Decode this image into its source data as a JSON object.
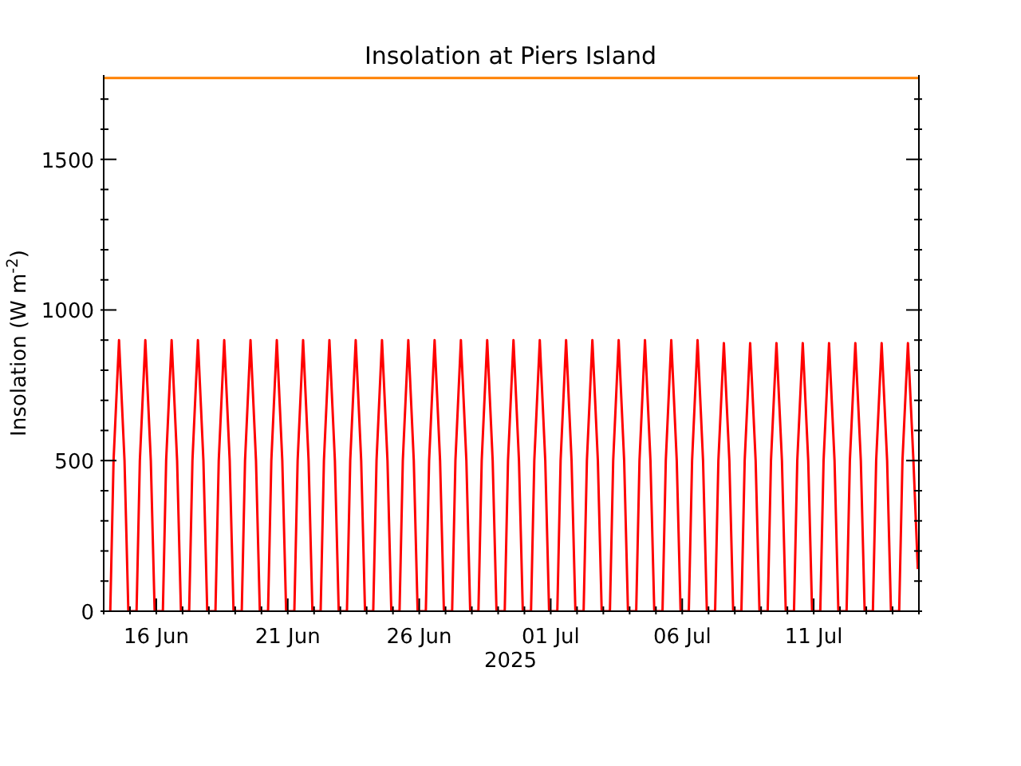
{
  "chart_data": {
    "type": "line",
    "title": "Insolation at Piers Island",
    "xlabel": "2025",
    "ylabel": "Insolation (W m$^{-2}$)",
    "xlim": [
      "2025-06-14",
      "2025-07-15"
    ],
    "ylim": [
      0,
      1780
    ],
    "xticks": [
      {
        "value": "2025-06-14",
        "label": null
      },
      {
        "value": "2025-06-15",
        "label": null
      },
      {
        "value": "2025-06-16",
        "label": "16 Jun"
      },
      {
        "value": "2025-06-17",
        "label": null
      },
      {
        "value": "2025-06-18",
        "label": null
      },
      {
        "value": "2025-06-19",
        "label": null
      },
      {
        "value": "2025-06-20",
        "label": null
      },
      {
        "value": "2025-06-21",
        "label": "21 Jun"
      },
      {
        "value": "2025-06-22",
        "label": null
      },
      {
        "value": "2025-06-23",
        "label": null
      },
      {
        "value": "2025-06-24",
        "label": null
      },
      {
        "value": "2025-06-25",
        "label": null
      },
      {
        "value": "2025-06-26",
        "label": "26 Jun"
      },
      {
        "value": "2025-06-27",
        "label": null
      },
      {
        "value": "2025-06-28",
        "label": null
      },
      {
        "value": "2025-06-29",
        "label": null
      },
      {
        "value": "2025-06-30",
        "label": null
      },
      {
        "value": "2025-07-01",
        "label": "01 Jul"
      },
      {
        "value": "2025-07-02",
        "label": null
      },
      {
        "value": "2025-07-03",
        "label": null
      },
      {
        "value": "2025-07-04",
        "label": null
      },
      {
        "value": "2025-07-05",
        "label": null
      },
      {
        "value": "2025-07-06",
        "label": "06 Jul"
      },
      {
        "value": "2025-07-07",
        "label": null
      },
      {
        "value": "2025-07-08",
        "label": null
      },
      {
        "value": "2025-07-09",
        "label": null
      },
      {
        "value": "2025-07-10",
        "label": null
      },
      {
        "value": "2025-07-11",
        "label": "11 Jul"
      },
      {
        "value": "2025-07-12",
        "label": null
      },
      {
        "value": "2025-07-13",
        "label": null
      },
      {
        "value": "2025-07-14",
        "label": null
      },
      {
        "value": "2025-07-15",
        "label": null
      }
    ],
    "yticks": [
      0,
      {
        "value": 100,
        "label": null
      },
      {
        "value": 200,
        "label": null
      },
      {
        "value": 300,
        "label": null
      },
      {
        "value": 400,
        "label": null
      },
      500,
      {
        "value": 600,
        "label": null
      },
      {
        "value": 700,
        "label": null
      },
      {
        "value": 800,
        "label": null
      },
      {
        "value": 900,
        "label": null
      },
      1000,
      {
        "value": 1100,
        "label": null
      },
      {
        "value": 1200,
        "label": null
      },
      {
        "value": 1300,
        "label": null
      },
      {
        "value": 1400,
        "label": null
      },
      1500,
      {
        "value": 1600,
        "label": null
      },
      {
        "value": 1700,
        "label": null
      }
    ],
    "marker": "none",
    "line_style": "solid",
    "series": [
      {
        "color": "#ff0000",
        "x": [
          "2025-06-14T06:00",
          "2025-06-14T09:00",
          "2025-06-14T14:00",
          "2025-06-14T19:00",
          "2025-06-14T22:30",
          "2025-06-15T06:00",
          "2025-06-15T09:00",
          "2025-06-15T14:00",
          "2025-06-15T19:00",
          "2025-06-15T22:30",
          "2025-06-16T06:00",
          "2025-06-16T09:00",
          "2025-06-16T14:00",
          "2025-06-16T19:00",
          "2025-06-16T22:30",
          "2025-06-17T06:00",
          "2025-06-17T09:00",
          "2025-06-17T14:00",
          "2025-06-17T19:00",
          "2025-06-17T22:30",
          "2025-06-18T06:00",
          "2025-06-18T09:00",
          "2025-06-18T14:00",
          "2025-06-18T19:00",
          "2025-06-18T22:30",
          "2025-06-19T06:00",
          "2025-06-19T09:00",
          "2025-06-19T14:00",
          "2025-06-19T19:00",
          "2025-06-19T22:30",
          "2025-06-20T06:00",
          "2025-06-20T09:00",
          "2025-06-20T14:00",
          "2025-06-20T19:00",
          "2025-06-20T22:30",
          "2025-06-21T06:00",
          "2025-06-21T09:00",
          "2025-06-21T14:00",
          "2025-06-21T19:00",
          "2025-06-21T22:30",
          "2025-06-22T06:00",
          "2025-06-22T09:00",
          "2025-06-22T14:00",
          "2025-06-22T19:00",
          "2025-06-22T22:30",
          "2025-06-23T06:00",
          "2025-06-23T09:00",
          "2025-06-23T14:00",
          "2025-06-23T19:00",
          "2025-06-23T22:30",
          "2025-06-24T06:00",
          "2025-06-24T09:00",
          "2025-06-24T14:00",
          "2025-06-24T19:00",
          "2025-06-24T22:30",
          "2025-06-25T06:00",
          "2025-06-25T09:00",
          "2025-06-25T14:00",
          "2025-06-25T19:00",
          "2025-06-25T22:30",
          "2025-06-26T06:00",
          "2025-06-26T09:00",
          "2025-06-26T14:00",
          "2025-06-26T19:00",
          "2025-06-26T22:30",
          "2025-06-27T06:00",
          "2025-06-27T09:00",
          "2025-06-27T14:00",
          "2025-06-27T19:00",
          "2025-06-27T22:30",
          "2025-06-28T06:00",
          "2025-06-28T09:00",
          "2025-06-28T14:00",
          "2025-06-28T19:00",
          "2025-06-28T22:30",
          "2025-06-29T06:00",
          "2025-06-29T09:00",
          "2025-06-29T14:00",
          "2025-06-29T19:00",
          "2025-06-29T22:30",
          "2025-06-30T06:00",
          "2025-06-30T09:00",
          "2025-06-30T14:00",
          "2025-06-30T19:00",
          "2025-06-30T22:30",
          "2025-07-01T06:00",
          "2025-07-01T09:00",
          "2025-07-01T14:00",
          "2025-07-01T19:00",
          "2025-07-01T22:30",
          "2025-07-02T06:00",
          "2025-07-02T09:00",
          "2025-07-02T14:00",
          "2025-07-02T19:00",
          "2025-07-02T22:30",
          "2025-07-03T06:00",
          "2025-07-03T09:00",
          "2025-07-03T14:00",
          "2025-07-03T19:00",
          "2025-07-03T22:30",
          "2025-07-04T06:00",
          "2025-07-04T09:00",
          "2025-07-04T14:00",
          "2025-07-04T19:00",
          "2025-07-04T22:30",
          "2025-07-05T06:00",
          "2025-07-05T09:00",
          "2025-07-05T14:00",
          "2025-07-05T19:00",
          "2025-07-05T22:30",
          "2025-07-06T06:00",
          "2025-07-06T09:00",
          "2025-07-06T14:00",
          "2025-07-06T19:00",
          "2025-07-06T22:30",
          "2025-07-07T06:00",
          "2025-07-07T09:00",
          "2025-07-07T14:00",
          "2025-07-07T19:00",
          "2025-07-07T22:30",
          "2025-07-08T06:00",
          "2025-07-08T09:00",
          "2025-07-08T14:00",
          "2025-07-08T19:00",
          "2025-07-08T22:30",
          "2025-07-09T06:00",
          "2025-07-09T09:00",
          "2025-07-09T14:00",
          "2025-07-09T19:00",
          "2025-07-09T22:30",
          "2025-07-10T06:00",
          "2025-07-10T09:00",
          "2025-07-10T14:00",
          "2025-07-10T19:00",
          "2025-07-10T22:30",
          "2025-07-11T06:00",
          "2025-07-11T09:00",
          "2025-07-11T14:00",
          "2025-07-11T19:00",
          "2025-07-11T22:30",
          "2025-07-12T06:00",
          "2025-07-12T09:00",
          "2025-07-12T14:00",
          "2025-07-12T19:00",
          "2025-07-12T22:30",
          "2025-07-13T06:00",
          "2025-07-13T09:00",
          "2025-07-13T14:00",
          "2025-07-13T19:00",
          "2025-07-13T22:30",
          "2025-07-14T06:00",
          "2025-07-14T09:00",
          "2025-07-14T14:00",
          "2025-07-14T19:00",
          "2025-07-14T23:00"
        ],
        "values": [
          0,
          500,
          900,
          500,
          0,
          0,
          500,
          900,
          500,
          0,
          0,
          500,
          900,
          500,
          0,
          0,
          500,
          900,
          500,
          0,
          0,
          500,
          900,
          500,
          0,
          0,
          500,
          900,
          500,
          0,
          0,
          500,
          900,
          500,
          0,
          0,
          500,
          900,
          500,
          0,
          0,
          500,
          900,
          500,
          0,
          0,
          500,
          900,
          500,
          0,
          0,
          500,
          900,
          500,
          0,
          0,
          500,
          900,
          500,
          0,
          0,
          500,
          900,
          500,
          0,
          0,
          500,
          900,
          500,
          0,
          0,
          500,
          900,
          500,
          0,
          0,
          500,
          900,
          500,
          0,
          0,
          500,
          900,
          500,
          0,
          0,
          500,
          900,
          500,
          0,
          0,
          500,
          900,
          500,
          0,
          0,
          500,
          900,
          500,
          0,
          0,
          500,
          900,
          500,
          0,
          0,
          500,
          900,
          500,
          0,
          0,
          500,
          900,
          500,
          0,
          0,
          500,
          890,
          500,
          0,
          0,
          500,
          890,
          500,
          0,
          0,
          500,
          890,
          500,
          0,
          0,
          500,
          890,
          500,
          0,
          0,
          500,
          890,
          500,
          0,
          0,
          500,
          890,
          500,
          0,
          0,
          500,
          890,
          500,
          0,
          0,
          500,
          890,
          500,
          140
        ]
      },
      {
        "color": "#ff8000",
        "x": [
          "2025-06-14",
          "2025-07-15"
        ],
        "values": [
          1770,
          1770
        ]
      }
    ]
  }
}
